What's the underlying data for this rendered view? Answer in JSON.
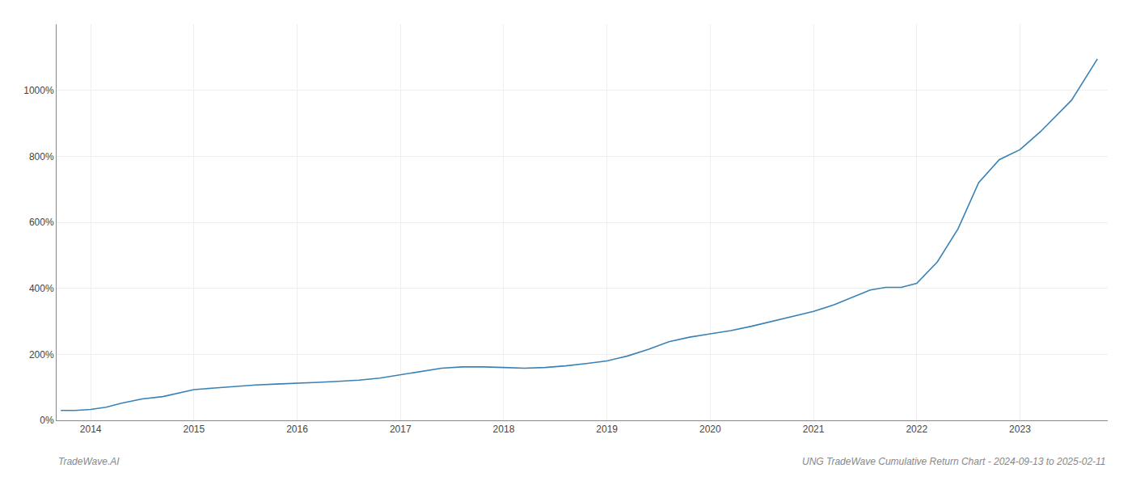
{
  "chart_data": {
    "type": "line",
    "title": "UNG TradeWave Cumulative Return Chart - 2024-09-13 to 2025-02-11",
    "annotations": [
      "TradeWave.AI"
    ],
    "x": [
      2013.71,
      2013.85,
      2014.0,
      2014.15,
      2014.3,
      2014.5,
      2014.7,
      2014.85,
      2015.0,
      2015.2,
      2015.4,
      2015.6,
      2015.8,
      2016.0,
      2016.2,
      2016.4,
      2016.6,
      2016.8,
      2017.0,
      2017.2,
      2017.4,
      2017.6,
      2017.8,
      2018.0,
      2018.2,
      2018.4,
      2018.6,
      2018.8,
      2019.0,
      2019.2,
      2019.4,
      2019.6,
      2019.8,
      2020.0,
      2020.2,
      2020.4,
      2020.6,
      2020.8,
      2021.0,
      2021.2,
      2021.4,
      2021.55,
      2021.7,
      2021.85,
      2022.0,
      2022.2,
      2022.4,
      2022.6,
      2022.8,
      2023.0,
      2023.2,
      2023.5,
      2023.75
    ],
    "values": [
      30,
      30,
      33,
      40,
      52,
      65,
      72,
      82,
      93,
      98,
      103,
      107,
      110,
      112,
      115,
      118,
      122,
      128,
      138,
      148,
      158,
      162,
      162,
      160,
      158,
      160,
      165,
      172,
      180,
      195,
      215,
      238,
      252,
      262,
      272,
      285,
      300,
      315,
      330,
      350,
      375,
      395,
      403,
      403,
      415,
      480,
      580,
      720,
      790,
      820,
      875,
      970,
      1095
    ],
    "color": "#3a82b5",
    "xlim": [
      2013.67,
      2023.85
    ],
    "xticks": [
      2014,
      2015,
      2016,
      2017,
      2018,
      2019,
      2020,
      2021,
      2022,
      2023
    ],
    "ylim": [
      0,
      1200
    ],
    "yticks": [
      {
        "value": 0,
        "label": "0%"
      },
      {
        "value": 200,
        "label": "200%"
      },
      {
        "value": 400,
        "label": "400%"
      },
      {
        "value": 600,
        "label": "600%"
      },
      {
        "value": 800,
        "label": "800%"
      },
      {
        "value": 1000,
        "label": "1000%"
      }
    ],
    "grid": true
  }
}
